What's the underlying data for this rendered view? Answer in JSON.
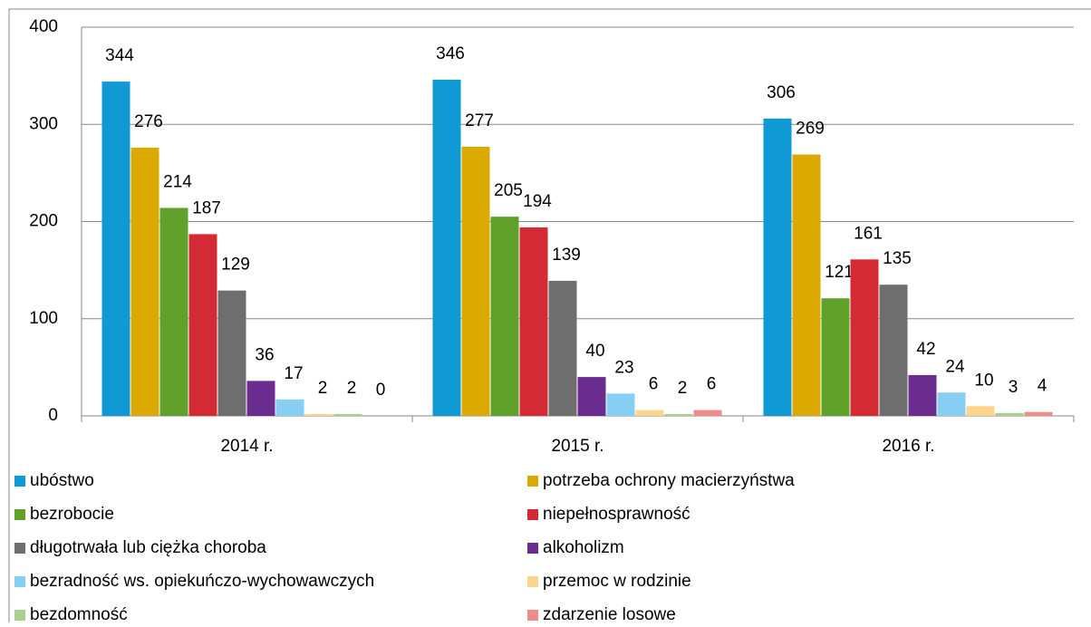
{
  "chart_data": {
    "type": "bar",
    "categories": [
      "2014 r.",
      "2015 r.",
      "2016 r."
    ],
    "series": [
      {
        "name": "ubóstwo",
        "color": "#0f9ad6",
        "values": [
          344,
          346,
          306
        ]
      },
      {
        "name": "potrzeba ochrony macierzyństwa",
        "color": "#dba900",
        "values": [
          276,
          277,
          269
        ]
      },
      {
        "name": "bezrobocie",
        "color": "#5fa12b",
        "values": [
          214,
          205,
          121
        ]
      },
      {
        "name": "niepełnosprawność",
        "color": "#d42a33",
        "values": [
          187,
          194,
          161
        ]
      },
      {
        "name": "długotrwała lub ciężka choroba",
        "color": "#6e6e6e",
        "values": [
          129,
          139,
          135
        ]
      },
      {
        "name": "alkoholizm",
        "color": "#6b2c8f",
        "values": [
          36,
          40,
          42
        ]
      },
      {
        "name": "bezradność ws. opiekuńczo-wychowawczych",
        "color": "#87cef3",
        "values": [
          17,
          23,
          24
        ]
      },
      {
        "name": "przemoc w rodzinie",
        "color": "#fcd48b",
        "values": [
          2,
          6,
          10
        ]
      },
      {
        "name": "bezdomność",
        "color": "#a9d08e",
        "values": [
          2,
          2,
          3
        ]
      },
      {
        "name": "zdarzenie losowe",
        "color": "#ef8b8b",
        "values": [
          0,
          6,
          4
        ]
      }
    ],
    "ylim": [
      0,
      400
    ],
    "yticks": [
      0,
      100,
      200,
      300,
      400
    ],
    "grid": true,
    "legend": "bottom"
  }
}
